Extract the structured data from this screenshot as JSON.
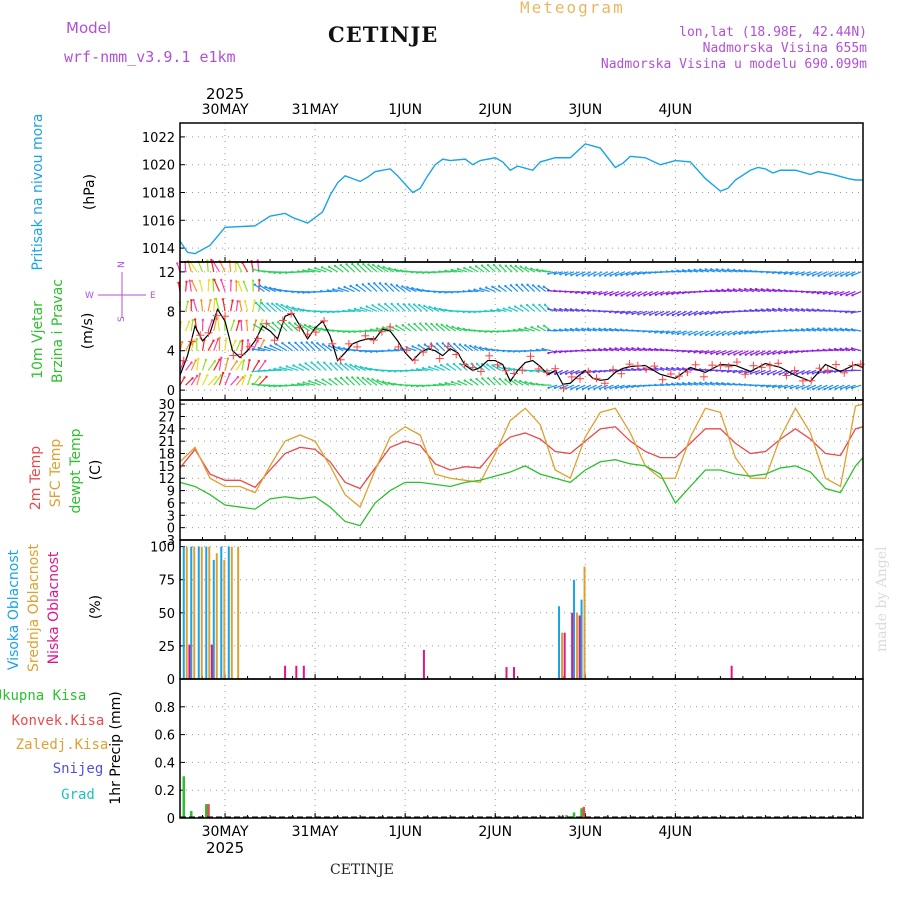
{
  "header": {
    "model_label": "Model",
    "model_name": "wrf-nmm_v3.9.1  e1km",
    "station": "CETINJE",
    "product": "Meteogram",
    "coords": "lon,lat (18.98E, 42.44N)",
    "elevation": "Nadmorska Visina 655m",
    "model_elevation": "Nadmorska Visina u modelu 690.099m",
    "watermark": "made by Angel",
    "footer_station": "CETINJE"
  },
  "colors": {
    "pressure": "#1aa3e6",
    "t2m": "#e84b4b",
    "tsfc": "#e0a030",
    "dewpoint": "#2ec02e",
    "cloud_high": "#1aa3e6",
    "cloud_mid": "#e0a030",
    "cloud_low": "#e0158a",
    "precip_total": "#2ec02e",
    "precip_conv": "#e84b4b",
    "precip_snow": "#5050e0",
    "precip_graupel": "#20c0c0",
    "purple_text": "#b050d8"
  },
  "chart_data": [
    {
      "type": "line",
      "name": "pressure",
      "ylabel": "Pritisak na nivou mora",
      "unit": "(hPa)",
      "ylim": [
        1013,
        1023
      ],
      "yticks": [
        1014,
        1016,
        1018,
        1020,
        1022
      ],
      "x": [
        0,
        2,
        4,
        8,
        12,
        20,
        24,
        28,
        30,
        34,
        38,
        40,
        42,
        44,
        46,
        48,
        50,
        52,
        56,
        58,
        60,
        62,
        64,
        66,
        68,
        70,
        72,
        76,
        78,
        80,
        84,
        86,
        88,
        90,
        94,
        96,
        100,
        104,
        108,
        112,
        116,
        118,
        120,
        124,
        128,
        132,
        136,
        140,
        144,
        146,
        148,
        152,
        154,
        156,
        158,
        160,
        164,
        168,
        170,
        174,
        178,
        180,
        182
      ],
      "values": [
        1014.5,
        1013.7,
        1013.6,
        1014.2,
        1015.5,
        1015.6,
        1016.3,
        1016.5,
        1016.2,
        1015.8,
        1016.6,
        1017.8,
        1018.7,
        1019.2,
        1019.0,
        1018.8,
        1019.1,
        1019.5,
        1019.7,
        1019.2,
        1018.6,
        1018.0,
        1018.3,
        1019.2,
        1020.0,
        1020.4,
        1020.3,
        1020.4,
        1020.0,
        1020.3,
        1020.5,
        1020.2,
        1019.6,
        1019.9,
        1019.6,
        1020.2,
        1020.5,
        1020.5,
        1021.5,
        1021.2,
        1019.8,
        1020.1,
        1020.6,
        1020.5,
        1020.0,
        1020.3,
        1020.2,
        1019.0,
        1018.1,
        1018.3,
        1018.9,
        1019.6,
        1019.8,
        1019.7,
        1019.4,
        1019.6,
        1019.6,
        1019.3,
        1019.5,
        1019.3,
        1019.0,
        1018.9,
        1018.9
      ]
    },
    {
      "type": "line",
      "name": "wind",
      "ylabel": "10m Vjetar",
      "ylabel2": "Brzina i Pravac",
      "unit": "(m/s)",
      "compass": [
        "N",
        "W",
        "E",
        "S"
      ],
      "ylim": [
        -1,
        13
      ],
      "yticks": [
        0,
        4,
        8,
        12
      ],
      "x": [
        0,
        2,
        4,
        6,
        8,
        10,
        12,
        14,
        16,
        18,
        20,
        22,
        24,
        26,
        28,
        30,
        32,
        34,
        36,
        38,
        40,
        42,
        44,
        46,
        48,
        50,
        52,
        54,
        56,
        58,
        60,
        62,
        64,
        66,
        68,
        70,
        72,
        74,
        76,
        78,
        80,
        82,
        84,
        86,
        88,
        90,
        92,
        94,
        96,
        98,
        100,
        102,
        104,
        106,
        108,
        110,
        112,
        114,
        116,
        118,
        120,
        124,
        128,
        132,
        136,
        140,
        144,
        148,
        152,
        156,
        160,
        164,
        168,
        172,
        176,
        180,
        182
      ],
      "values": [
        1.5,
        3.5,
        6.5,
        5.0,
        5.8,
        8.2,
        7.0,
        4.0,
        3.3,
        4.0,
        5.0,
        6.5,
        6.0,
        5.2,
        7.5,
        7.8,
        6.5,
        5.2,
        6.3,
        7.0,
        5.5,
        3.0,
        3.8,
        4.7,
        5.0,
        5.2,
        5.2,
        6.2,
        6.0,
        5.0,
        3.8,
        3.0,
        3.8,
        4.2,
        4.0,
        3.5,
        4.2,
        3.8,
        2.5,
        2.0,
        2.3,
        3.0,
        3.0,
        2.6,
        0.9,
        2.0,
        2.8,
        3.0,
        2.4,
        1.6,
        2.0,
        0.6,
        0.7,
        1.4,
        2.0,
        1.2,
        1.0,
        1.1,
        1.8,
        2.2,
        2.4,
        2.5,
        1.6,
        1.2,
        2.3,
        1.8,
        2.6,
        2.5,
        1.9,
        2.7,
        2.3,
        1.5,
        0.9,
        2.6,
        1.9,
        2.6,
        2.3
      ]
    },
    {
      "type": "line",
      "name": "temperature",
      "ylabel_t2m": "2m Temp",
      "ylabel_tsfc": "SFC Temp",
      "ylabel_dew": "dewpt Temp",
      "unit": "(C)",
      "ylim": [
        -3,
        31
      ],
      "yticks": [
        -3,
        0,
        3,
        6,
        9,
        12,
        15,
        18,
        21,
        24,
        27,
        30
      ],
      "ytick_labels": [
        "-3",
        "0",
        "3",
        "6",
        "9",
        "12",
        "15",
        "18",
        "21",
        "24",
        "27",
        "30"
      ],
      "x": [
        0,
        4,
        8,
        12,
        16,
        20,
        24,
        28,
        32,
        36,
        40,
        44,
        48,
        52,
        56,
        60,
        64,
        68,
        72,
        76,
        80,
        84,
        88,
        92,
        96,
        100,
        104,
        108,
        112,
        116,
        120,
        124,
        128,
        132,
        136,
        140,
        144,
        148,
        152,
        156,
        160,
        164,
        168,
        172,
        176,
        180,
        182
      ],
      "series": [
        {
          "name": "2m Temp",
          "values": [
            14.5,
            19.0,
            13.0,
            11.5,
            11.5,
            9.8,
            14.0,
            18.0,
            19.5,
            19.0,
            16.0,
            11.0,
            9.5,
            14.5,
            19.5,
            21.0,
            20.0,
            15.5,
            14.0,
            14.8,
            14.5,
            19.0,
            22.0,
            23.0,
            21.5,
            18.5,
            18.0,
            21.0,
            24.0,
            24.5,
            21.0,
            18.5,
            17.0,
            17.0,
            20.5,
            24.0,
            24.0,
            20.5,
            18.0,
            18.5,
            21.5,
            24.0,
            21.5,
            18.0,
            17.5,
            24.0,
            24.5
          ]
        },
        {
          "name": "SFC Temp",
          "values": [
            16.0,
            19.5,
            12.0,
            10.0,
            10.0,
            8.5,
            15.0,
            21.0,
            22.5,
            21.0,
            15.0,
            8.0,
            5.0,
            14.0,
            22.0,
            24.5,
            22.5,
            13.0,
            12.0,
            11.5,
            11.0,
            18.0,
            26.0,
            29.0,
            25.0,
            14.0,
            12.0,
            22.0,
            28.0,
            29.0,
            23.0,
            15.0,
            12.0,
            12.0,
            22.0,
            29.0,
            28.0,
            17.0,
            12.0,
            12.0,
            22.0,
            29.0,
            23.0,
            12.0,
            10.0,
            29.5,
            30.0
          ]
        },
        {
          "name": "dewpt Temp",
          "values": [
            11.0,
            10.0,
            8.0,
            5.5,
            5.0,
            4.5,
            7.0,
            7.5,
            7.0,
            7.5,
            5.0,
            1.5,
            0.5,
            6.0,
            9.0,
            11.0,
            11.0,
            10.5,
            10.0,
            11.0,
            11.5,
            12.5,
            13.5,
            15.0,
            13.0,
            12.0,
            11.0,
            14.0,
            16.0,
            16.5,
            15.5,
            15.0,
            13.0,
            6.0,
            10.0,
            14.0,
            14.0,
            13.0,
            12.5,
            13.0,
            14.5,
            15.0,
            13.5,
            9.5,
            8.5,
            15.0,
            17.0
          ]
        }
      ]
    },
    {
      "type": "bar",
      "name": "clouds",
      "ylabel_high": "Visoka Oblacnost",
      "ylabel_mid": "Srednja Oblacnost",
      "ylabel_low": "Niska Oblacnost",
      "unit": "(%)",
      "ylim": [
        0,
        105
      ],
      "yticks": [
        0,
        25,
        50,
        75,
        100
      ],
      "series": [
        {
          "name": "Visoka Oblacnost",
          "x": [
            1,
            3,
            5,
            7,
            9,
            11,
            13,
            101,
            105,
            107
          ],
          "values": [
            100,
            100,
            100,
            100,
            90,
            100,
            100,
            55,
            75,
            60
          ]
        },
        {
          "name": "Srednja Oblacnost",
          "x": [
            1.8,
            3.8,
            5.8,
            7.8,
            9.8,
            11.8,
            13.8,
            15.5,
            101.8,
            105.8,
            107.8
          ],
          "values": [
            100,
            100,
            100,
            100,
            95,
            90,
            100,
            100,
            35,
            50,
            85
          ]
        },
        {
          "name": "Niska Oblacnost",
          "x": [
            2.5,
            8.5,
            28,
            31,
            33,
            65,
            87,
            89,
            102.5,
            104.5,
            106.5,
            147
          ],
          "values": [
            26,
            26,
            10,
            10,
            10,
            22,
            9,
            9,
            35,
            50,
            48,
            10
          ]
        }
      ]
    },
    {
      "type": "bar",
      "name": "precipitation",
      "legend": [
        "Ukupna Kisa",
        "Konvek.Kisa",
        "Zaledj.Kisa",
        "Snijeg",
        "Grad"
      ],
      "ylabel": "1hr Precip (mm)",
      "ylim": [
        0,
        1.0
      ],
      "yticks": [
        0,
        0.2,
        0.4,
        0.6,
        0.8
      ],
      "ytick_labels": [
        "0",
        "0.2",
        "0.4",
        "0.6",
        "0.8"
      ],
      "series": [
        {
          "name": "Ukupna Kisa",
          "x": [
            1,
            3,
            7,
            101,
            103,
            105,
            107
          ],
          "values": [
            0.3,
            0.05,
            0.1,
            0.02,
            0.02,
            0.04,
            0.07
          ]
        },
        {
          "name": "Konvek.Kisa",
          "x": [
            7.6,
            107.6
          ],
          "values": [
            0.1,
            0.08
          ]
        }
      ]
    }
  ],
  "time_axis": {
    "hours": 182,
    "year": "2025",
    "ticks": [
      {
        "label": "30MAY",
        "hour": 12
      },
      {
        "label": "31MAY",
        "hour": 36
      },
      {
        "label": "1JUN",
        "hour": 60
      },
      {
        "label": "2JUN",
        "hour": 84
      },
      {
        "label": "3JUN",
        "hour": 108
      },
      {
        "label": "4JUN",
        "hour": 132
      }
    ]
  }
}
